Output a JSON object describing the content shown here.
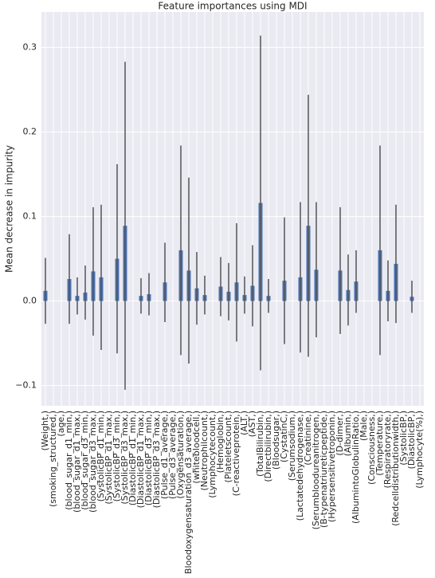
{
  "chart_data": {
    "type": "bar",
    "title": "Feature importances using MDI",
    "y_label": "Mean decrease in impurity",
    "categories": [
      "(Weight,)",
      "(smoking_structured,)",
      "(age,)",
      "(blood_sugar_d1_min,)",
      "(blood_sugar_d1_max,)",
      "(blood_sugar_d3_min,)",
      "(blood_sugar_d3_max,)",
      "(SystolicBP_d1_min,)",
      "(SystolicBP_d1_max,)",
      "(SystolicBP_d3_min,)",
      "(SystolicBP_d3_max,)",
      "(DiastolicBP_d1_min,)",
      "(DiastolicBP_d1_max,)",
      "(DiastolicBP_d3_min,)",
      "(DiastolicBP_d3_max,)",
      "(Pulse_d1_average,)",
      "(Pulse_d3_average,)",
      "(Oxygensaturation,)",
      "(Bloodoxygensaturation_d3_average,)",
      "(whitebloodcell,)",
      "(Neutrophilcount,)",
      "(Lymphocytecount,)",
      "(Hemoglobin,)",
      "(Plateletscount,)",
      "(C-reactiveprotein,)",
      "(ALT,)",
      "(AST,)",
      "(TotalBilirubin,)",
      "(Directbilirubin,)",
      "(Bloodsugar,)",
      "(CystatinC,)",
      "(Serumsodium,)",
      "(Lactatedehydrogenase,)",
      "(Creatinine,)",
      "(Serumbloodureanitrogen,)",
      "(B-typenatriureticpeptide,)",
      "(Hypersensitivetroponin,)",
      "(D-dimer,)",
      "(Albumin,)",
      "(AlbumintoGlobulinRatio,)",
      "(Male,)",
      "(Consciousness,)",
      "(Temperature,)",
      "(Respiratoryrate,)",
      "(Redcelldistributionwidth,)",
      "(SystolicBP,)",
      "(DiastolicBP,)",
      "(Lymphocyte(%),)"
    ],
    "values": [
      0.012,
      0,
      0,
      0.026,
      0.006,
      0.01,
      0.035,
      0.028,
      0,
      0.05,
      0.089,
      0,
      0.006,
      0.008,
      0,
      0.022,
      0,
      0.06,
      0.036,
      0.015,
      0.007,
      0,
      0.017,
      0.011,
      0.022,
      0.007,
      0.018,
      0.116,
      0.006,
      0,
      0.024,
      0,
      0.028,
      0.089,
      0.037,
      0,
      0,
      0.036,
      0.013,
      0.023,
      0,
      0,
      0.06,
      0.012,
      0.044,
      0,
      0.005,
      0
    ],
    "errors": [
      0.039,
      0,
      0,
      0.053,
      0.022,
      0.032,
      0.076,
      0.086,
      0,
      0.112,
      0.194,
      0,
      0.021,
      0.025,
      0,
      0.047,
      0,
      0.124,
      0.11,
      0.043,
      0.023,
      0,
      0.035,
      0.034,
      0.07,
      0.022,
      0.048,
      0.198,
      0.02,
      0,
      0.075,
      0,
      0.089,
      0.155,
      0.08,
      0,
      0,
      0.075,
      0.042,
      0.037,
      0,
      0,
      0.124,
      0.036,
      0.07,
      0,
      0.019,
      0
    ],
    "color": "#4c72b0",
    "error_color": "#555555",
    "ylim": [
      -0.124,
      0.342
    ],
    "yticks": [
      {
        "value": -0.1,
        "label": "−0.1"
      },
      {
        "value": 0,
        "label": "0.0"
      },
      0.1,
      0.2,
      0.3
    ],
    "grid": true
  }
}
